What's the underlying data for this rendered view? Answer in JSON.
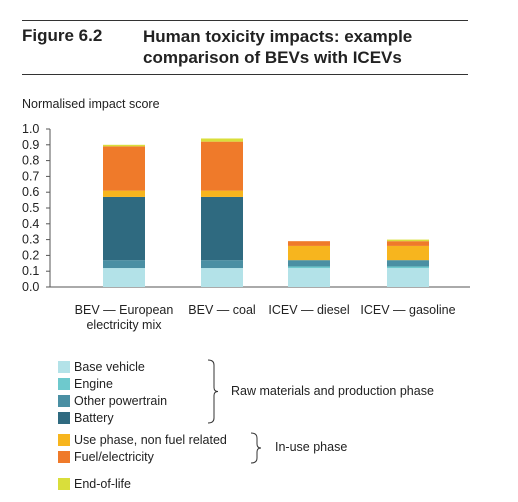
{
  "figure": {
    "number": "Figure 6.2",
    "title": "Human toxicity impacts: example comparison of BEVs with ICEVs"
  },
  "chart_data": {
    "type": "bar",
    "stacked": true,
    "title": "Human toxicity impacts: example comparison of BEVs with ICEVs",
    "ylabel": "Normalised impact score",
    "xlabel": "",
    "ylim": [
      0,
      1.0
    ],
    "yticks": [
      "1.0",
      "0.9",
      "0.8",
      "0.7",
      "0.6",
      "0.5",
      "0.4",
      "0.3",
      "0.2",
      "0.1",
      "0.0"
    ],
    "grid": false,
    "categories": [
      [
        "BEV — European",
        "electricity mix"
      ],
      [
        "BEV — coal"
      ],
      [
        "ICEV — diesel"
      ],
      [
        "ICEV — gasoline"
      ]
    ],
    "series": [
      {
        "name": "Base vehicle",
        "color": "#b3e2e8",
        "values": [
          0.12,
          0.12,
          0.12,
          0.12
        ]
      },
      {
        "name": "Engine",
        "color": "#6ec9cd",
        "values": [
          0.0,
          0.0,
          0.01,
          0.01
        ]
      },
      {
        "name": "Other powertrain",
        "color": "#4a8fa3",
        "values": [
          0.05,
          0.05,
          0.04,
          0.04
        ]
      },
      {
        "name": "Battery",
        "color": "#2f6a80",
        "values": [
          0.4,
          0.4,
          0.0,
          0.0
        ]
      },
      {
        "name": "Use phase, non fuel related",
        "color": "#f7b51e",
        "values": [
          0.04,
          0.04,
          0.09,
          0.09
        ]
      },
      {
        "name": "Fuel/electricity",
        "color": "#ef7a2a",
        "values": [
          0.28,
          0.31,
          0.03,
          0.03
        ]
      },
      {
        "name": "End-of-life",
        "color": "#d9de3b",
        "values": [
          0.01,
          0.02,
          0.0,
          0.01
        ]
      }
    ],
    "legend": {
      "placement": "bottom",
      "groups": [
        {
          "label": "Raw materials and production phase",
          "series": [
            "Base vehicle",
            "Engine",
            "Other powertrain",
            "Battery"
          ]
        },
        {
          "label": "In-use phase",
          "series": [
            "Use phase, non fuel related",
            "Fuel/electricity"
          ]
        },
        {
          "label": "",
          "series": [
            "End-of-life"
          ]
        }
      ]
    }
  }
}
